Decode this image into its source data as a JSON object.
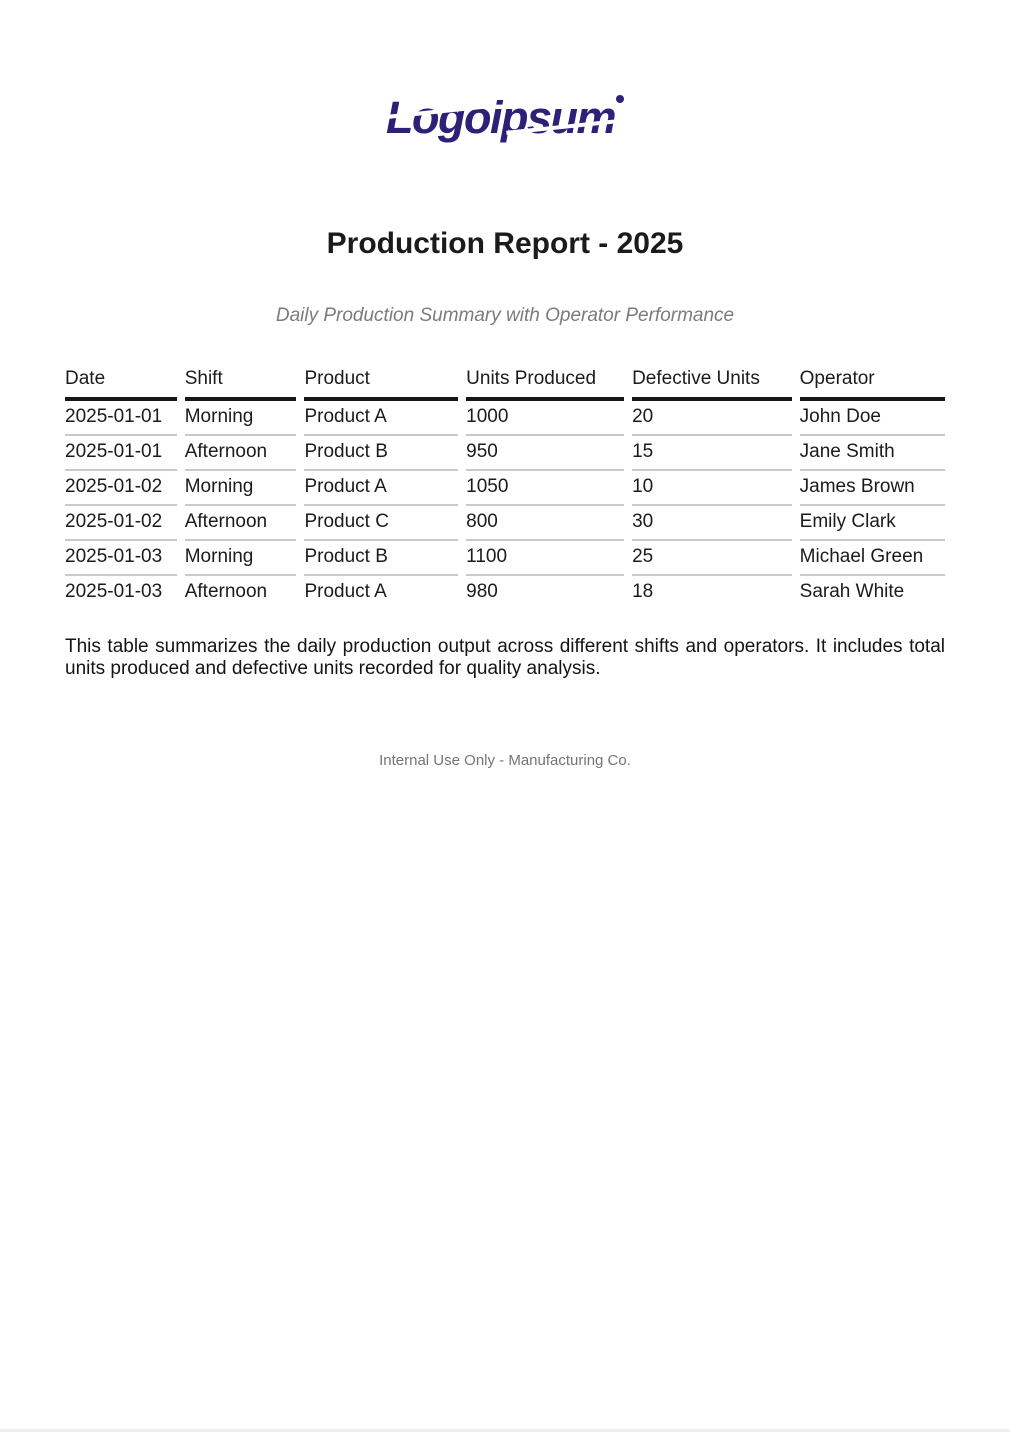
{
  "logo": {
    "text": "Logoipsum"
  },
  "title": "Production Report - 2025",
  "subtitle": "Daily Production Summary with Operator Performance",
  "table": {
    "headers": [
      "Date",
      "Shift",
      "Product",
      "Units Produced",
      "Defective Units",
      "Operator"
    ],
    "rows": [
      [
        "2025-01-01",
        "Morning",
        "Product A",
        "1000",
        "20",
        "John Doe"
      ],
      [
        "2025-01-01",
        "Afternoon",
        "Product B",
        "950",
        "15",
        "Jane Smith"
      ],
      [
        "2025-01-02",
        "Morning",
        "Product A",
        "1050",
        "10",
        "James Brown"
      ],
      [
        "2025-01-02",
        "Afternoon",
        "Product C",
        "800",
        "30",
        "Emily Clark"
      ],
      [
        "2025-01-03",
        "Morning",
        "Product B",
        "1100",
        "25",
        "Michael Green"
      ],
      [
        "2025-01-03",
        "Afternoon",
        "Product A",
        "980",
        "18",
        "Sarah White"
      ]
    ]
  },
  "summary": "This table summarizes the daily production output across different shifts and operators. It includes total units produced and defective units recorded for quality analysis.",
  "footer": "Internal Use Only - Manufacturing Co.",
  "colors": {
    "brand": "#2b2177",
    "title_text": "#1b1b1b",
    "subtitle_text": "#7b7b7b",
    "header_rule": "#161616",
    "row_rule": "#c9c9c9",
    "footer_text": "#757575"
  }
}
